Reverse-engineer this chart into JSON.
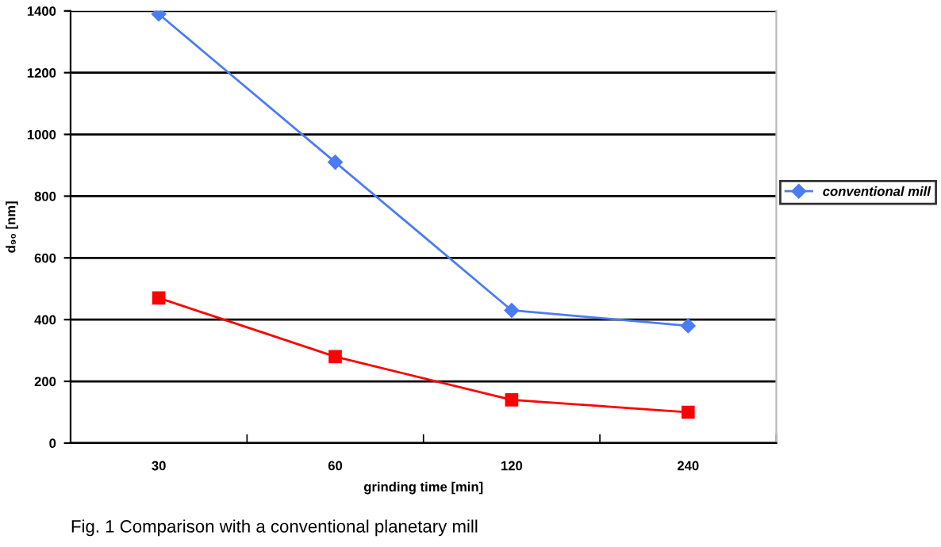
{
  "chart_data": {
    "type": "line",
    "xlabel": "grinding time [min]",
    "ylabel": "d₉₀ [nm]",
    "categories": [
      "30",
      "60",
      "120",
      "240"
    ],
    "series": [
      {
        "name": "conventional mill",
        "color": "#4a7cf5",
        "values": [
          1390,
          910,
          430,
          380
        ],
        "marker": "diamond"
      },
      {
        "color": "#ff0000",
        "values": [
          470,
          280,
          140,
          100
        ],
        "marker": "square"
      }
    ],
    "ylim": [
      0,
      1400
    ],
    "yticks": [
      0,
      200,
      400,
      600,
      800,
      1000,
      1200,
      1400
    ],
    "grid": "y",
    "legend": "right",
    "annotations": [
      "Fig. 1 Comparison with a conventional planetary mill"
    ]
  }
}
